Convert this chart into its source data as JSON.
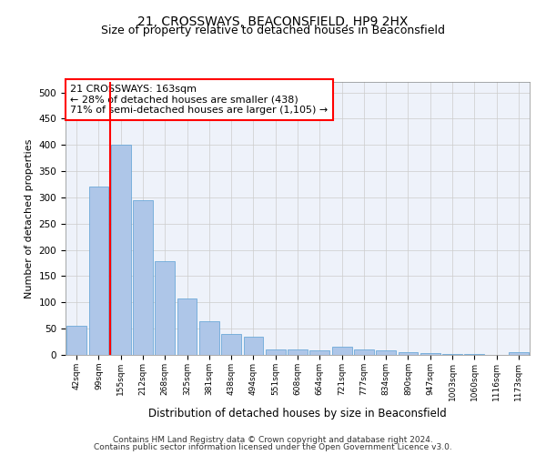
{
  "title1": "21, CROSSWAYS, BEACONSFIELD, HP9 2HX",
  "title2": "Size of property relative to detached houses in Beaconsfield",
  "xlabel": "Distribution of detached houses by size in Beaconsfield",
  "ylabel": "Number of detached properties",
  "annotation_line1": "21 CROSSWAYS: 163sqm",
  "annotation_line2": "← 28% of detached houses are smaller (438)",
  "annotation_line3": "71% of semi-detached houses are larger (1,105) →",
  "footer1": "Contains HM Land Registry data © Crown copyright and database right 2024.",
  "footer2": "Contains public sector information licensed under the Open Government Licence v3.0.",
  "bin_labels": [
    "42sqm",
    "99sqm",
    "155sqm",
    "212sqm",
    "268sqm",
    "325sqm",
    "381sqm",
    "438sqm",
    "494sqm",
    "551sqm",
    "608sqm",
    "664sqm",
    "721sqm",
    "777sqm",
    "834sqm",
    "890sqm",
    "947sqm",
    "1003sqm",
    "1060sqm",
    "1116sqm",
    "1173sqm"
  ],
  "bar_heights": [
    55,
    320,
    400,
    295,
    178,
    108,
    65,
    40,
    35,
    10,
    10,
    8,
    15,
    10,
    8,
    5,
    3,
    1,
    1,
    0,
    5
  ],
  "bar_color": "#aec6e8",
  "bar_edgecolor": "#5a9fd4",
  "vline_color": "red",
  "ylim": [
    0,
    520
  ],
  "yticks": [
    0,
    50,
    100,
    150,
    200,
    250,
    300,
    350,
    400,
    450,
    500
  ],
  "grid_color": "#cccccc",
  "bg_color": "#eef2fa",
  "title1_fontsize": 10,
  "title2_fontsize": 9,
  "annotation_fontsize": 8,
  "footer_fontsize": 6.5
}
